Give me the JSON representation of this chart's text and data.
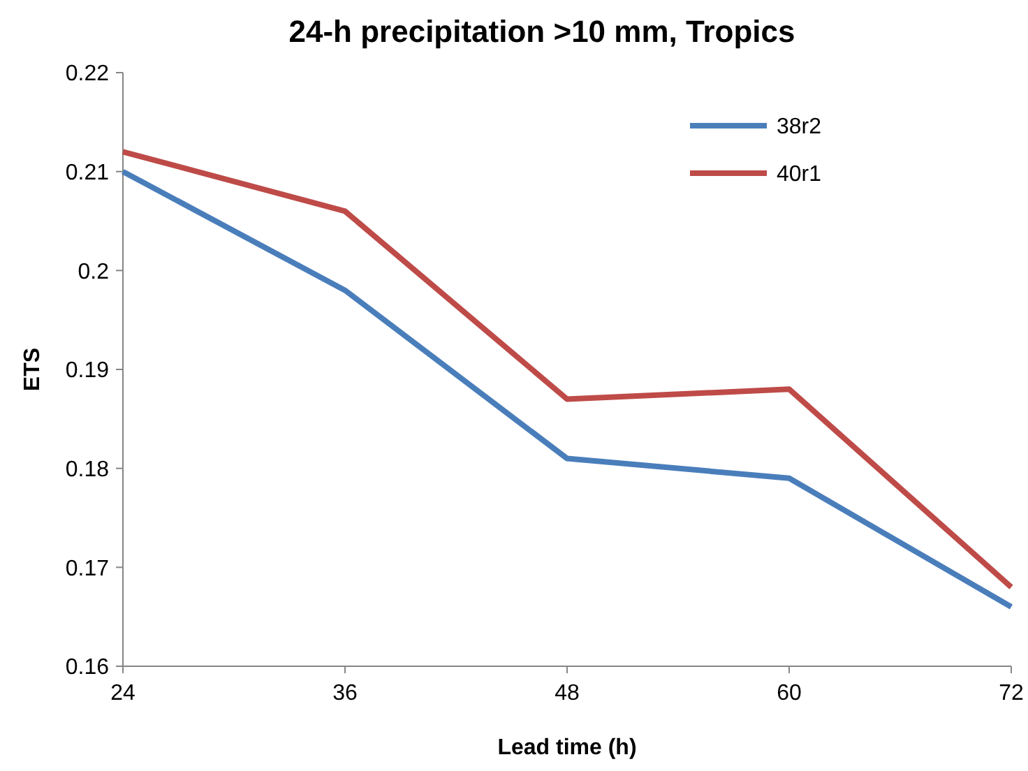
{
  "chart_data": {
    "type": "line",
    "title": "24-h precipitation >10 mm, Tropics",
    "xlabel": "Lead time (h)",
    "ylabel": "ETS",
    "x": [
      24,
      36,
      48,
      60,
      72
    ],
    "series": [
      {
        "name": "38r2",
        "color": "#4a7ebb",
        "values": [
          0.21,
          0.198,
          0.181,
          0.179,
          0.166
        ]
      },
      {
        "name": "40r1",
        "color": "#be4b48",
        "values": [
          0.212,
          0.206,
          0.187,
          0.188,
          0.168
        ]
      }
    ],
    "xlim": [
      24,
      72
    ],
    "xticks": [
      24,
      36,
      48,
      60,
      72
    ],
    "ylim": [
      0.16,
      0.22
    ],
    "yticks": [
      0.16,
      0.17,
      0.18,
      0.19,
      0.2,
      0.21,
      0.22
    ],
    "grid": false,
    "legend": "top right",
    "marker": "none",
    "line_style": "solid"
  }
}
